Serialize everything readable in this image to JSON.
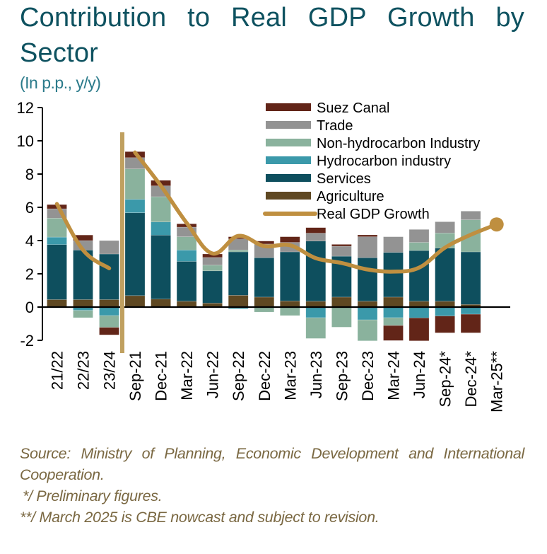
{
  "header": {
    "title_line1": "Contribution to Real GDP Growth by",
    "title_line2": "Sector",
    "subtitle": "(In p.p., y/y)"
  },
  "notes": {
    "source": "Source: Ministry of Planning, Economic Development and International Cooperation.",
    "footnote1": "*/ Preliminary figures.",
    "footnote2": "**/ March 2025 is CBE nowcast and subject to revision."
  },
  "chart_data": {
    "type": "bar",
    "stacked": true,
    "title": "Contribution to Real GDP Growth by Sector",
    "subtitle": "(In p.p., y/y)",
    "xlabel": "",
    "ylabel": "",
    "ylim": [
      -2,
      12
    ],
    "yticks": [
      -2,
      0,
      2,
      4,
      6,
      8,
      10,
      12
    ],
    "ytick_labels": [
      "-2",
      "0",
      "2",
      "4",
      "6",
      "8",
      "10",
      "12"
    ],
    "grid": false,
    "legend_position": "top-right",
    "categories": [
      "21/22",
      "22/23",
      "23/24",
      "Sep-21",
      "Dec-21",
      "Mar-22",
      "Jun-22",
      "Sep-22",
      "Dec-22",
      "Mar-23",
      "Jun-23",
      "Sep-23",
      "Dec-23",
      "Mar-24",
      "Jun-24",
      "Sep-24*",
      "Dec-24*",
      "Mar-25**"
    ],
    "annual_categories": [
      "21/22",
      "22/23",
      "23/24"
    ],
    "separator_after": "23/24",
    "series": [
      {
        "name": "Agriculture",
        "color": "#5f4822",
        "values": [
          0.45,
          0.45,
          0.45,
          0.69,
          0.48,
          0.35,
          0.24,
          0.71,
          0.6,
          0.37,
          0.35,
          0.6,
          0.35,
          0.6,
          0.35,
          0.35,
          0.16,
          null
        ]
      },
      {
        "name": "Services",
        "color": "#0e4f5e",
        "values": [
          3.31,
          2.98,
          2.74,
          4.98,
          3.85,
          2.4,
          1.94,
          2.61,
          2.37,
          2.95,
          3.62,
          2.46,
          2.62,
          2.69,
          3.05,
          3.2,
          3.16,
          null
        ]
      },
      {
        "name": "Hydrocarbon industry",
        "color": "#3b99aa",
        "values": [
          0.45,
          -0.2,
          -0.51,
          0.81,
          0.79,
          0.68,
          0.0,
          -0.1,
          0.0,
          0.0,
          -0.64,
          0.0,
          -0.77,
          -0.64,
          -0.65,
          -0.54,
          -0.43,
          null
        ]
      },
      {
        "name": "Non-hydrocarbon Industry",
        "color": "#8ab29d",
        "values": [
          1.14,
          -0.44,
          -0.71,
          1.83,
          1.52,
          0.8,
          0.34,
          0.11,
          -0.3,
          -0.51,
          -1.25,
          -1.21,
          -1.26,
          -0.47,
          0.49,
          0.9,
          1.93,
          null
        ]
      },
      {
        "name": "Trade",
        "color": "#939393",
        "values": [
          0.56,
          0.57,
          0.81,
          0.68,
          0.65,
          0.58,
          0.46,
          0.67,
          0.82,
          0.57,
          0.48,
          0.6,
          1.26,
          0.94,
          0.78,
          0.68,
          0.52,
          null
        ]
      },
      {
        "name": "Suez Canal",
        "color": "#622518",
        "values": [
          0.25,
          0.33,
          -0.45,
          0.36,
          0.33,
          0.2,
          0.21,
          0.13,
          0.18,
          0.34,
          0.33,
          0.11,
          0.11,
          -0.9,
          -1.38,
          -1.01,
          -1.12,
          null
        ]
      }
    ],
    "line_series": [
      {
        "name": "Real GDP Growth",
        "color": "#bf8f40",
        "annual_values": [
          6.2,
          3.43,
          2.33
        ],
        "quarterly_values": [
          9.3,
          7.3,
          5.06,
          3.22,
          4.28,
          3.67,
          3.72,
          2.94,
          2.65,
          2.26,
          2.13,
          2.37,
          3.57,
          4.35,
          4.97
        ],
        "end_marker": "Mar-25**"
      }
    ],
    "legend": [
      "Suez Canal",
      "Trade",
      "Non-hydrocarbon Industry",
      "Hydrocarbon industry",
      "Services",
      "Agriculture",
      "Real GDP Growth"
    ]
  }
}
